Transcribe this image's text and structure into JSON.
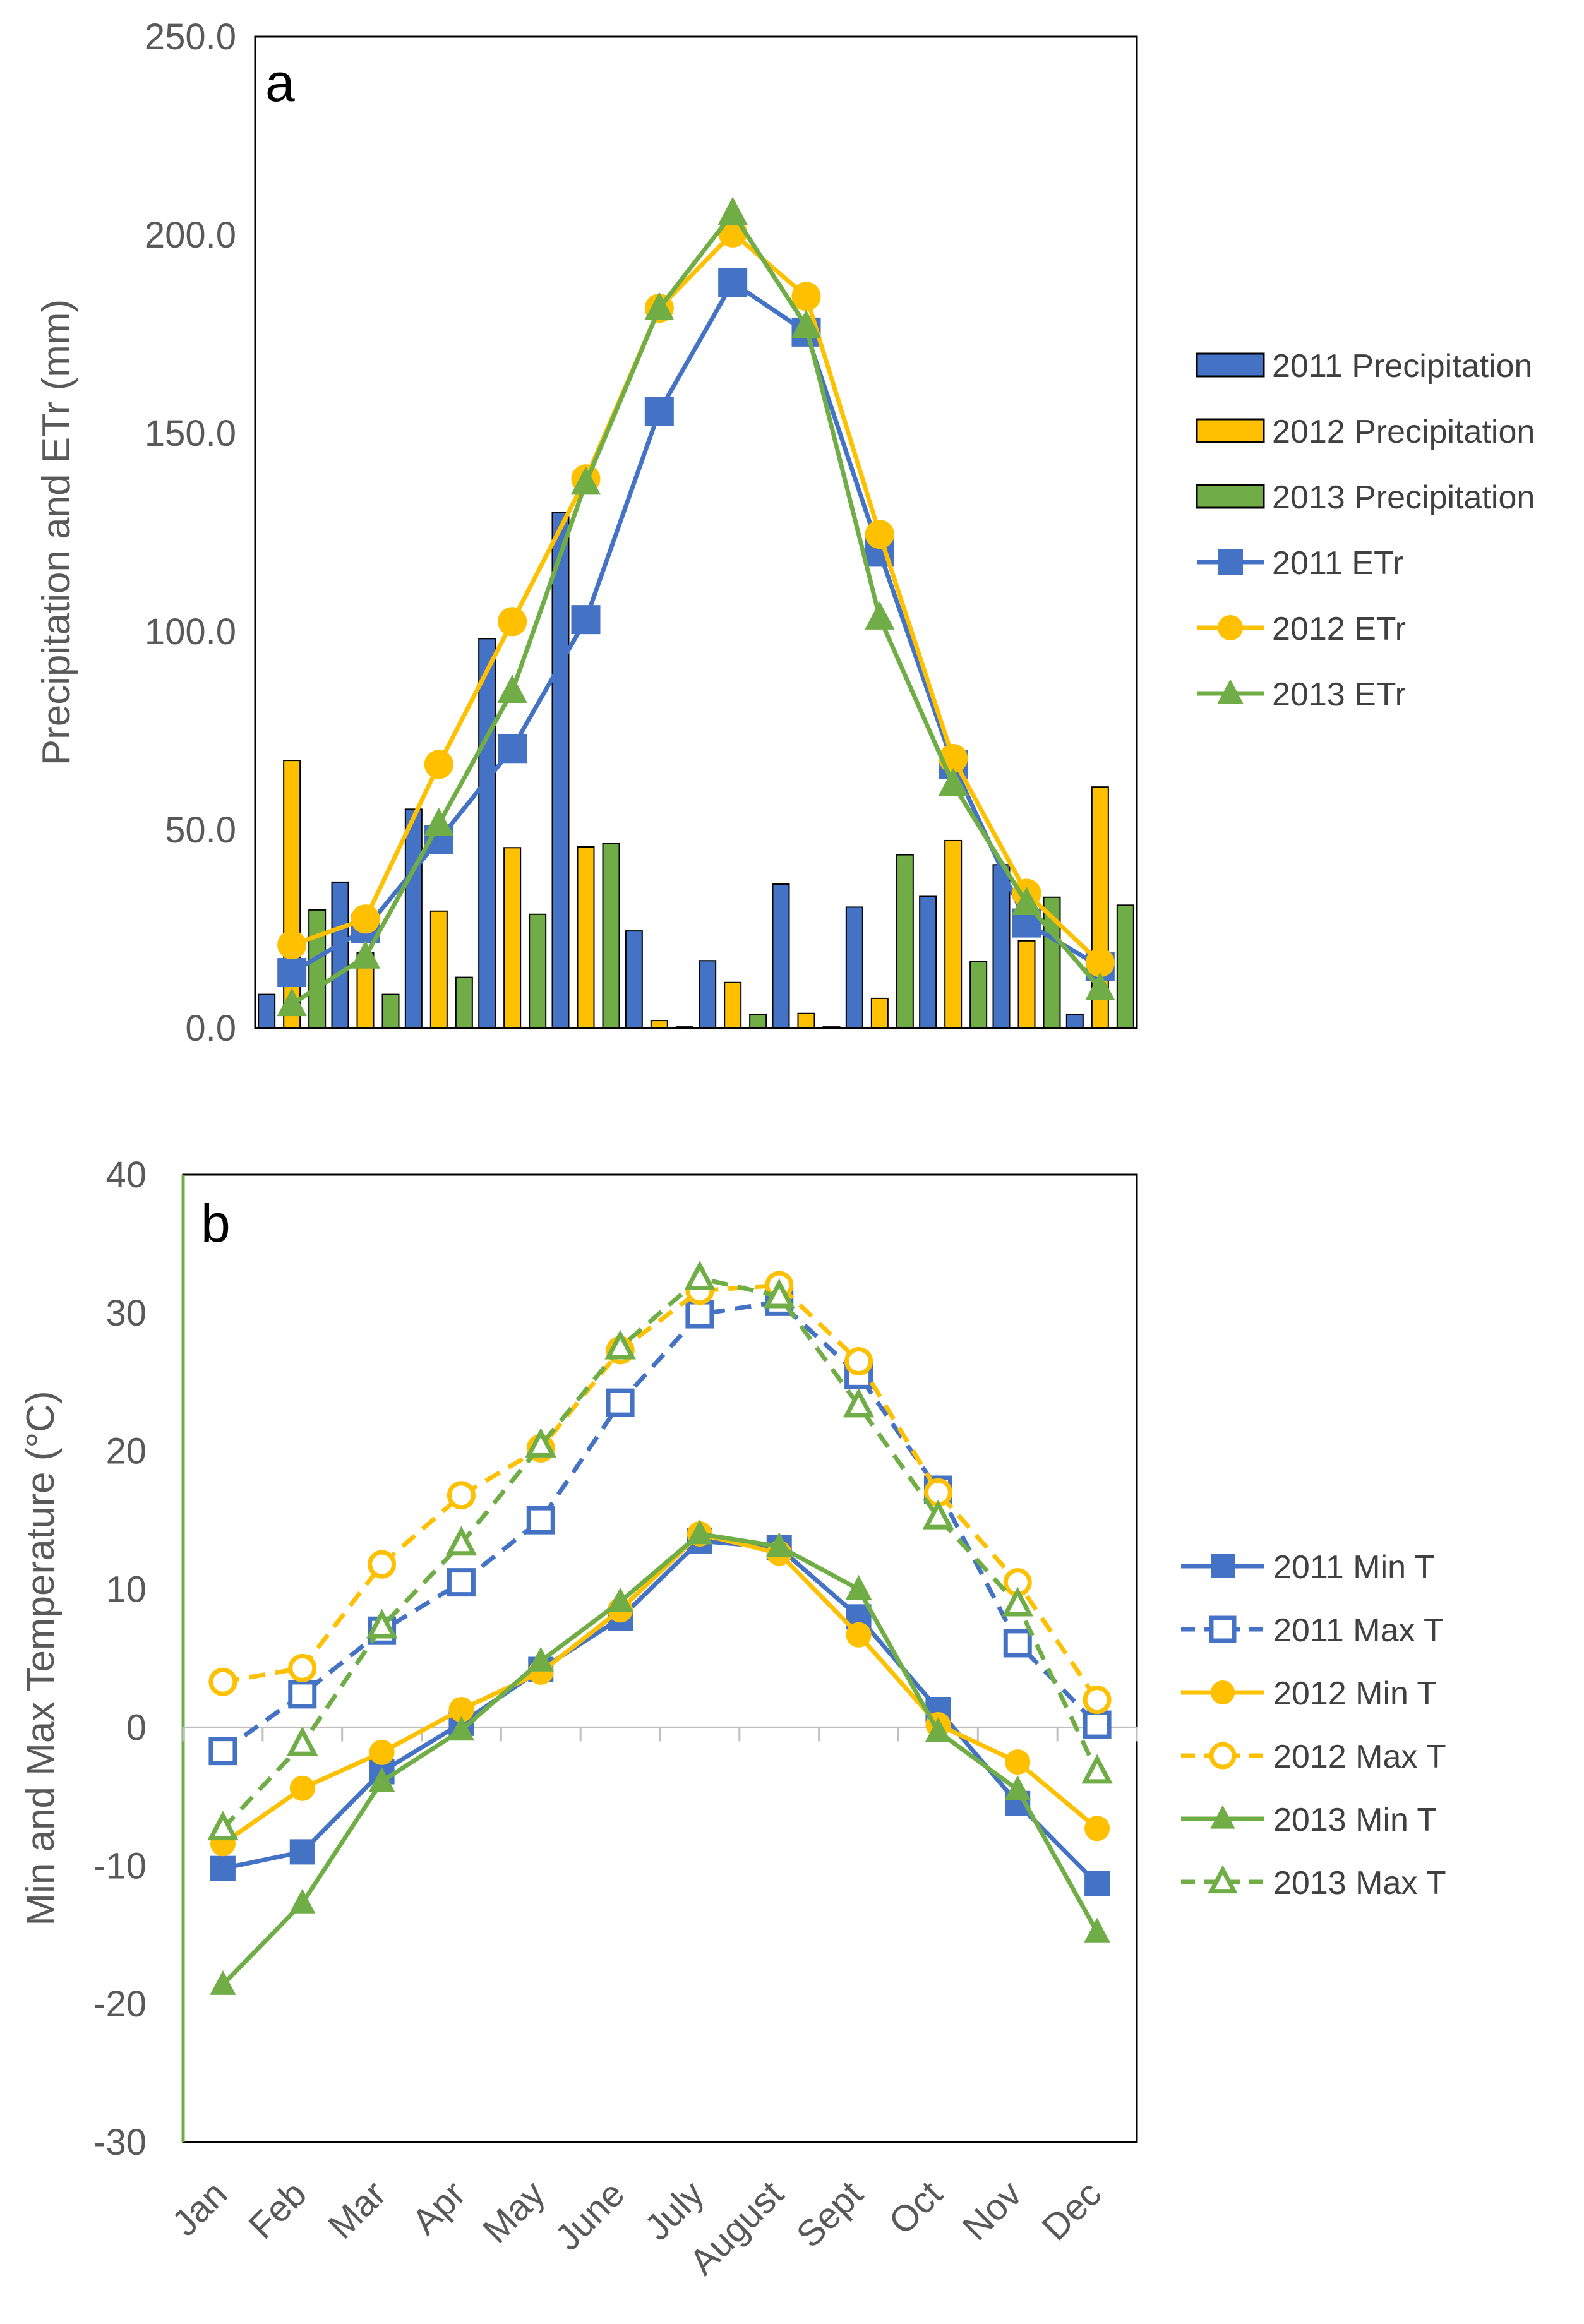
{
  "chart_data": [
    {
      "panel": "a",
      "type": "bar",
      "panel_label": "a",
      "ylabel": "Precipitation and ETr (mm)",
      "ylim": [
        0,
        250
      ],
      "yticks": [
        0,
        50,
        100,
        150,
        200,
        250
      ],
      "ytick_labels": [
        "0.0",
        "50.0",
        "100.0",
        "150.0",
        "200.0",
        "250.0"
      ],
      "categories": [
        "Jan",
        "Feb",
        "Mar",
        "Apr",
        "May",
        "June",
        "July",
        "August",
        "Sept",
        "Oct",
        "Nov",
        "Dec"
      ],
      "legend_position": "right",
      "series": [
        {
          "name": "2011 Precipitation",
          "kind": "bar",
          "color": "#4472C4",
          "values": [
            8.5,
            36.8,
            55.2,
            98.2,
            130.0,
            24.5,
            17.0,
            36.3,
            30.5,
            33.2,
            41.2,
            3.4
          ]
        },
        {
          "name": "2012 Precipitation",
          "kind": "bar",
          "color": "#FFC000",
          "values": [
            67.5,
            19.0,
            29.5,
            45.5,
            45.7,
            1.9,
            11.5,
            3.7,
            7.5,
            47.3,
            22.0,
            60.8
          ]
        },
        {
          "name": "2013 Precipitation",
          "kind": "bar",
          "color": "#70AD47",
          "values": [
            29.8,
            8.5,
            12.8,
            28.7,
            46.5,
            0.3,
            3.4,
            0.3,
            43.7,
            16.8,
            33.0,
            31.0
          ]
        },
        {
          "name": "2011 ETr",
          "kind": "line",
          "marker": "square",
          "color": "#4472C4",
          "values": [
            14.0,
            25.0,
            47.5,
            70.5,
            103.0,
            155.5,
            188.0,
            175.5,
            120.0,
            66.5,
            26.5,
            15.5
          ]
        },
        {
          "name": "2012 ETr",
          "kind": "line",
          "marker": "circle",
          "color": "#FFC000",
          "values": [
            21.0,
            27.5,
            66.5,
            102.5,
            138.5,
            181.5,
            200.5,
            184.5,
            124.5,
            68.0,
            34.0,
            16.5
          ]
        },
        {
          "name": "2013 ETr",
          "kind": "line",
          "marker": "triangle",
          "color": "#70AD47",
          "values": [
            6.0,
            18.0,
            51.5,
            85.0,
            137.5,
            181.5,
            205.5,
            177.0,
            103.5,
            61.5,
            31.5,
            10.0
          ]
        }
      ]
    },
    {
      "panel": "b",
      "type": "line",
      "panel_label": "b",
      "ylabel": "Min and Max Temperature (°C)",
      "ylim": [
        -30,
        40
      ],
      "yticks": [
        -30,
        -20,
        -10,
        0,
        10,
        20,
        30,
        40
      ],
      "ytick_labels": [
        "-30",
        "-20",
        "-10",
        "0",
        "10",
        "20",
        "30",
        "40"
      ],
      "categories": [
        "Jan",
        "Feb",
        "Mar",
        "Apr",
        "May",
        "June",
        "July",
        "August",
        "Sept",
        "Oct",
        "Nov",
        "Dec"
      ],
      "legend_position": "right",
      "series": [
        {
          "name": "2011 Min T",
          "marker": "square",
          "filled": true,
          "dashed": false,
          "color": "#4472C4",
          "values": [
            -10.2,
            -9.0,
            -3.2,
            0.3,
            4.2,
            7.9,
            13.5,
            13.0,
            8.0,
            1.3,
            -5.5,
            -11.3
          ]
        },
        {
          "name": "2011 Max T",
          "marker": "square",
          "filled": false,
          "dashed": true,
          "color": "#4472C4",
          "values": [
            -1.7,
            2.4,
            7.0,
            10.5,
            15.0,
            23.5,
            29.9,
            30.8,
            25.5,
            17.2,
            6.1,
            0.2
          ]
        },
        {
          "name": "2012 Min T",
          "marker": "circle",
          "filled": true,
          "dashed": false,
          "color": "#FFC000",
          "values": [
            -8.4,
            -4.4,
            -1.8,
            1.3,
            4.0,
            8.5,
            14.0,
            12.6,
            6.7,
            0.2,
            -2.5,
            -7.3
          ]
        },
        {
          "name": "2012 Max T",
          "marker": "circle",
          "filled": false,
          "dashed": true,
          "color": "#FFC000",
          "values": [
            3.3,
            4.3,
            11.8,
            16.8,
            20.2,
            27.3,
            31.6,
            32.0,
            26.5,
            17.0,
            10.5,
            2.0
          ]
        },
        {
          "name": "2013 Min T",
          "marker": "triangle",
          "filled": true,
          "dashed": false,
          "color": "#70AD47",
          "values": [
            -18.6,
            -12.7,
            -3.9,
            -0.2,
            4.8,
            9.1,
            14.0,
            13.1,
            10.0,
            -0.3,
            -4.5,
            -14.8
          ]
        },
        {
          "name": "2013 Max T",
          "marker": "triangle",
          "filled": false,
          "dashed": true,
          "color": "#70AD47",
          "values": [
            -7.3,
            -1.2,
            7.3,
            13.3,
            20.4,
            27.5,
            32.5,
            31.2,
            23.3,
            15.2,
            8.9,
            -3.2
          ]
        }
      ]
    }
  ]
}
